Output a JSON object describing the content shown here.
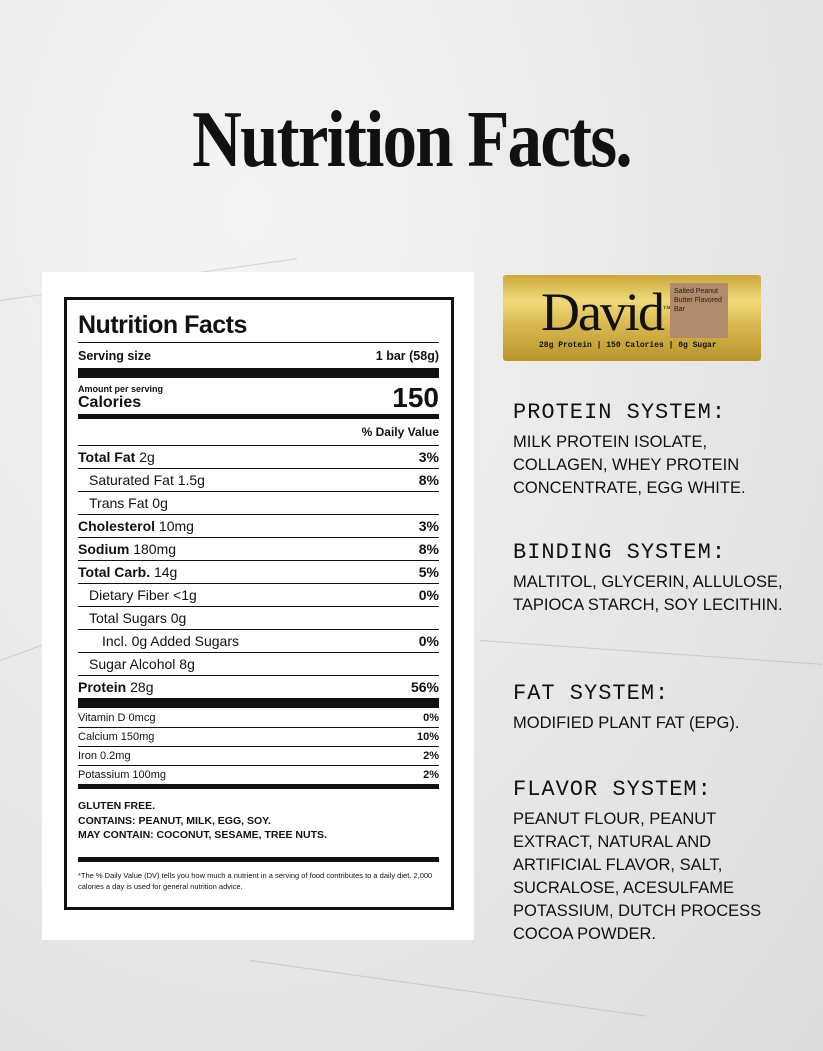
{
  "page_title": "Nutrition Facts.",
  "label": {
    "title": "Nutrition Facts",
    "serving_size_label": "Serving size",
    "serving_size_value": "1 bar (58g)",
    "amount_per_serving": "Amount per serving",
    "calories_label": "Calories",
    "calories_value": "150",
    "dv_header": "% Daily Value",
    "nutrients": [
      {
        "name": "Total Fat",
        "amount": "2g",
        "dv": "3%"
      },
      {
        "name": "Saturated Fat",
        "amount": "1.5g",
        "dv": "8%"
      },
      {
        "name": "Trans Fat",
        "amount": "0g",
        "dv": ""
      },
      {
        "name": "Cholesterol",
        "amount": "10mg",
        "dv": "3%"
      },
      {
        "name": "Sodium",
        "amount": "180mg",
        "dv": "8%"
      },
      {
        "name": "Total Carb.",
        "amount": "14g",
        "dv": "5%"
      },
      {
        "name": "Dietary Fiber",
        "amount": "<1g",
        "dv": "0%"
      },
      {
        "name": "Total Sugars",
        "amount": "0g",
        "dv": ""
      },
      {
        "name": "Incl. 0g Added Sugars",
        "amount": "",
        "dv": "0%"
      },
      {
        "name": "Sugar Alcohol",
        "amount": "8g",
        "dv": ""
      },
      {
        "name": "Protein",
        "amount": "28g",
        "dv": "56%"
      }
    ],
    "vitamins": [
      {
        "name": "Vitamin D 0mcg",
        "dv": "0%"
      },
      {
        "name": "Calcium 150mg",
        "dv": "10%"
      },
      {
        "name": "Iron 0.2mg",
        "dv": "2%"
      },
      {
        "name": "Potassium 100mg",
        "dv": "2%"
      }
    ],
    "allergens": [
      "GLUTEN FREE.",
      "CONTAINS: PEANUT, MILK, EGG, SOY.",
      "MAY CONTAIN: COCONUT, SESAME, TREE NUTS."
    ],
    "footnote": "*The % Daily Value (DV) tells you how much a nutrient in a serving of food contributes to a daily diet. 2,000 calories a day is used for general nutrition advice."
  },
  "product": {
    "brand": "David",
    "trademark": "™",
    "flavor": "Salted Peanut Butter Flavored Bar",
    "strip": "28g Protein | 150 Calories | 0g Sugar"
  },
  "systems": [
    {
      "heading": "PROTEIN SYSTEM:",
      "body": "MILK PROTEIN ISOLATE, COLLAGEN, WHEY PROTEIN CONCENTRATE, EGG WHITE."
    },
    {
      "heading": "BINDING SYSTEM:",
      "body": "MALTITOL, GLYCERIN, ALLULOSE, TAPIOCA STARCH, SOY LECITHIN."
    },
    {
      "heading": "FAT SYSTEM:",
      "body": "MODIFIED PLANT FAT (EPG)."
    },
    {
      "heading": "FLAVOR SYSTEM:",
      "body": "PEANUT FLOUR, PEANUT EXTRACT, NATURAL AND ARTIFICIAL FLAVOR, SALT, SUCRALOSE, ACESULFAME POTASSIUM, DUTCH PROCESS COCOA POWDER."
    }
  ]
}
